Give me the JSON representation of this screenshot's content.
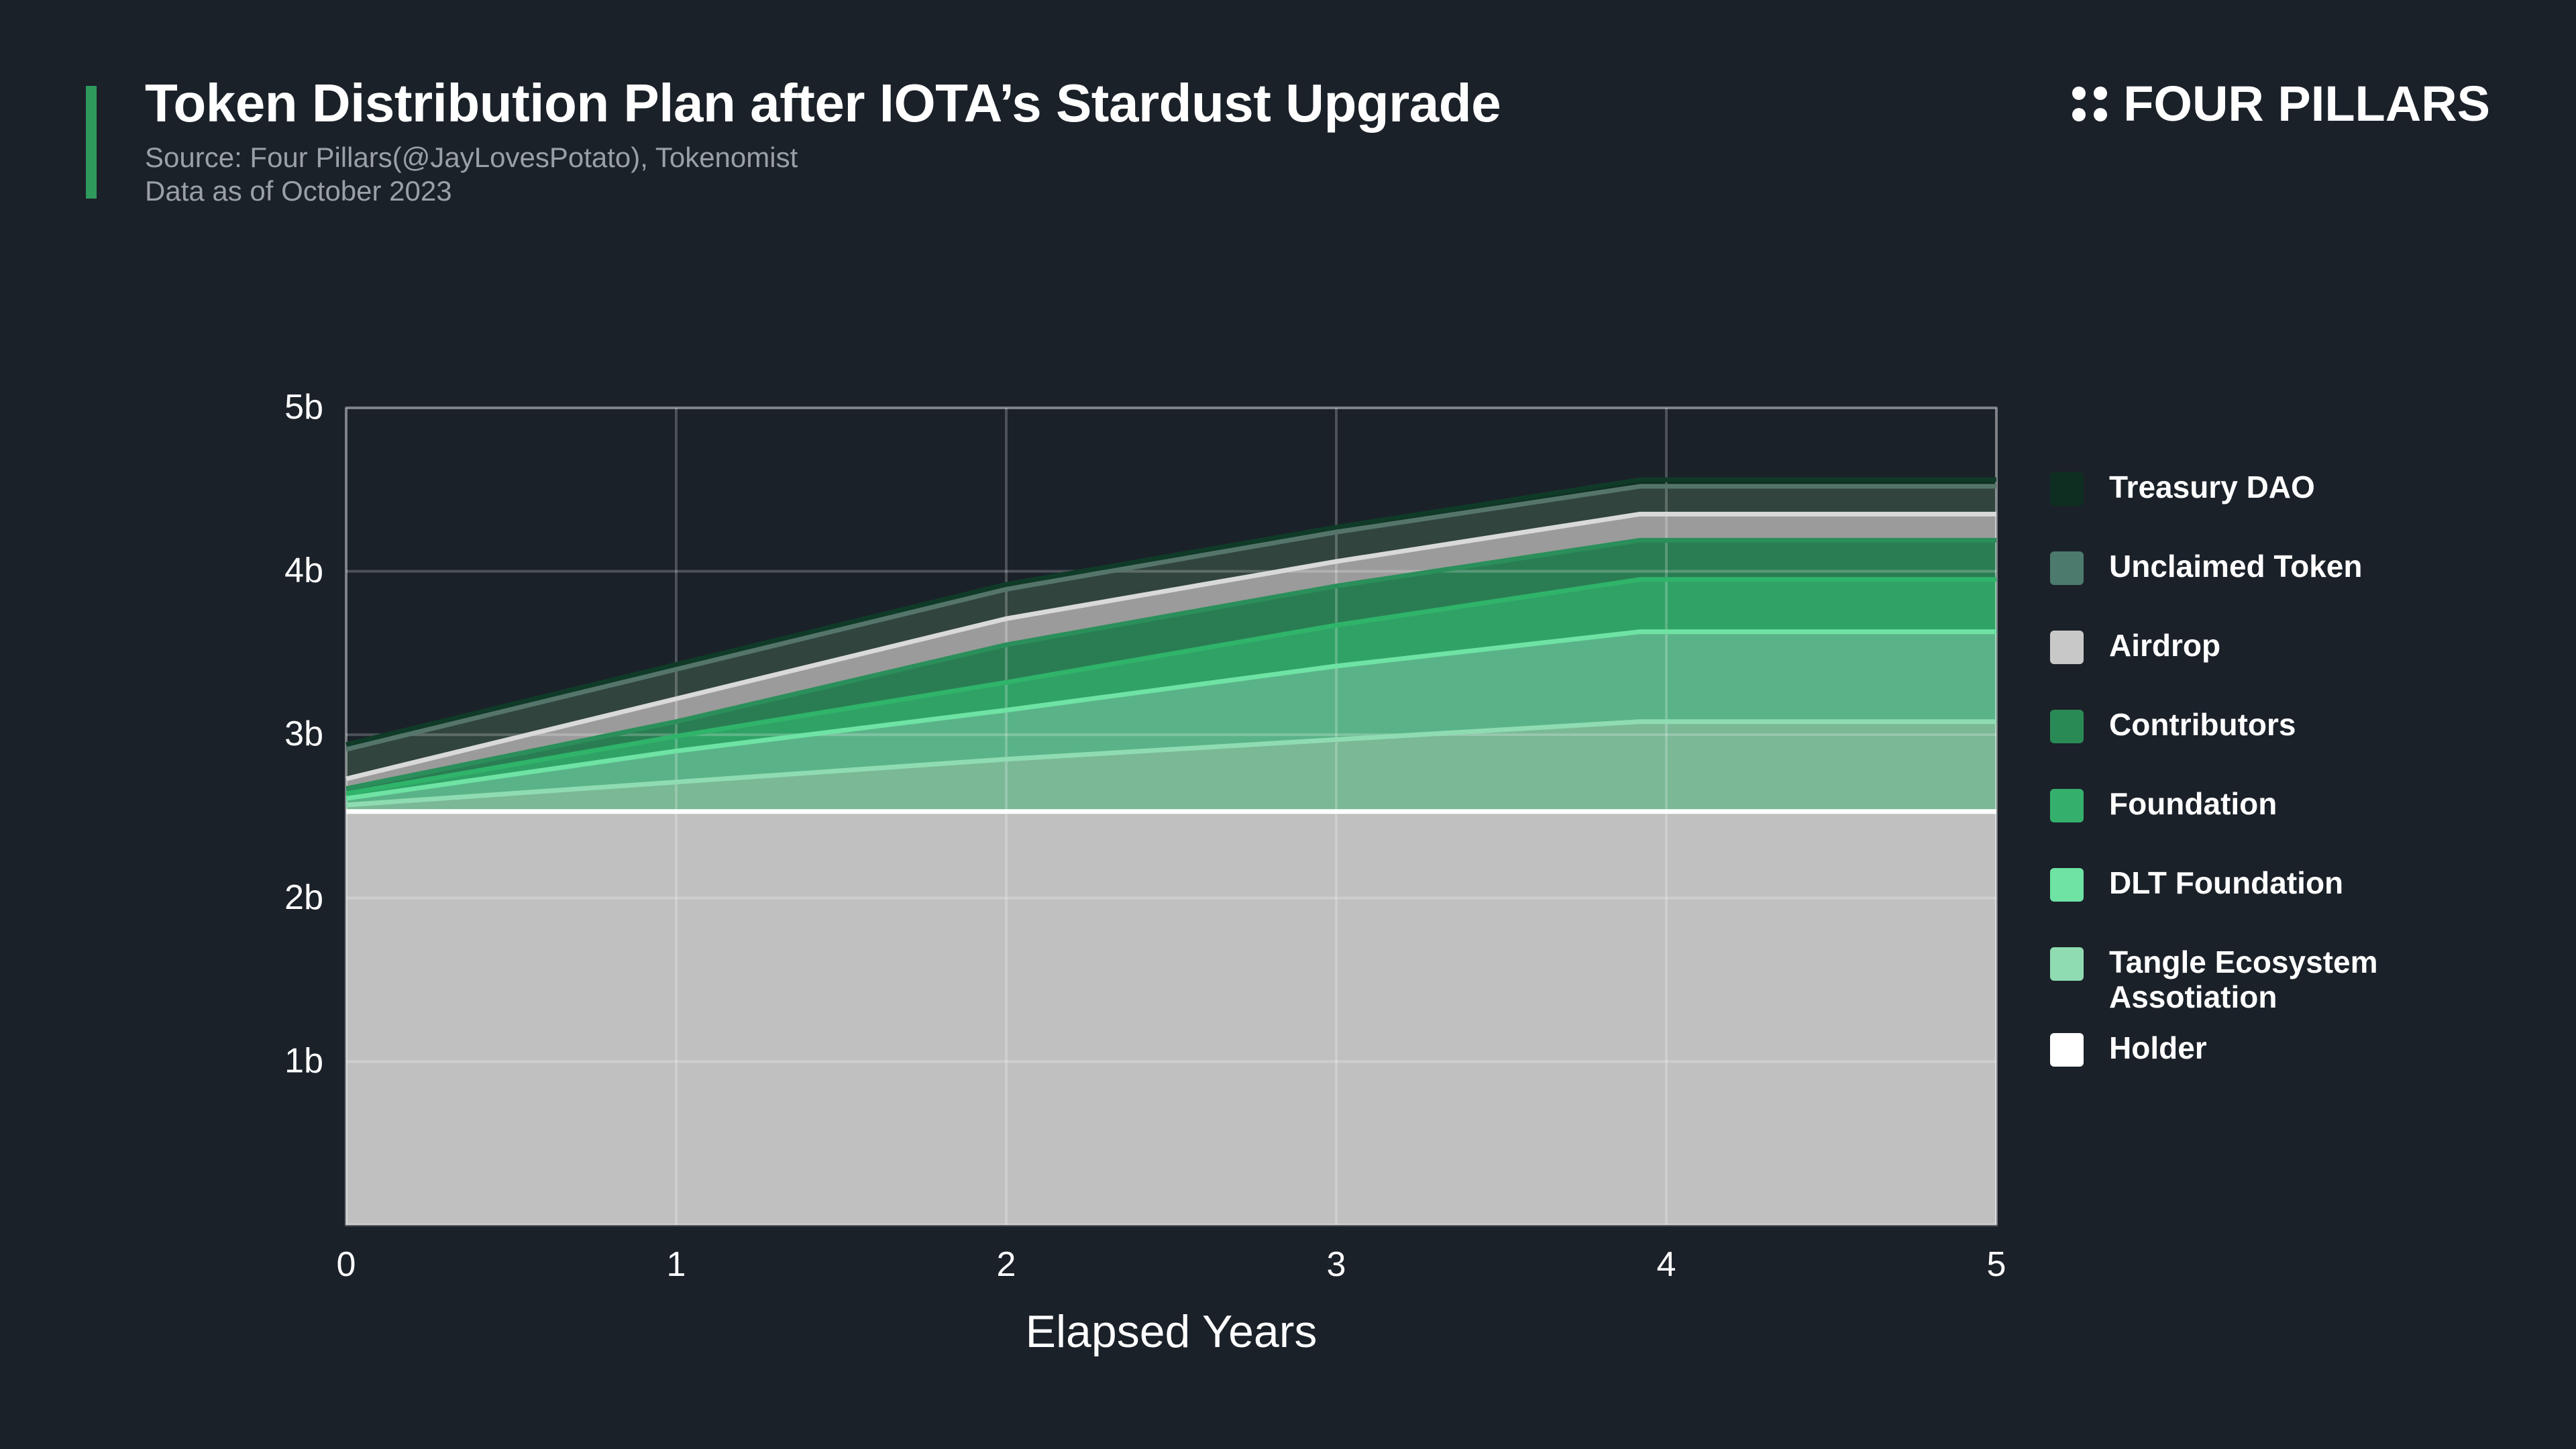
{
  "header": {
    "title": "Token Distribution Plan after IOTA’s Stardust Upgrade",
    "source": "Source: Four Pillars(@JayLovesPotato), Tokenomist",
    "date_note": "Data as of October 2023"
  },
  "brand": {
    "name": "FOUR PILLARS",
    "icon": "four-dots-logo-icon"
  },
  "colors": {
    "background": "#1b2129",
    "accent": "#2e9a5c"
  },
  "chart_data": {
    "type": "area",
    "stacked": true,
    "title": "Token Distribution Plan after IOTA’s Stardust Upgrade",
    "xlabel": "Elapsed Years",
    "ylabel": "",
    "x": [
      0,
      1,
      2,
      3,
      3.92,
      5
    ],
    "x_ticks": [
      "0",
      "1",
      "2",
      "3",
      "4",
      "5"
    ],
    "xlim": [
      0,
      5
    ],
    "ylim": [
      0,
      5
    ],
    "y_ticks": [
      {
        "value": 1,
        "label": "1b"
      },
      {
        "value": 2,
        "label": "2b"
      },
      {
        "value": 3,
        "label": "3b"
      },
      {
        "value": 4,
        "label": "4b"
      },
      {
        "value": 5,
        "label": "5b"
      }
    ],
    "unit": "b",
    "grid": true,
    "legend_position": "right",
    "series": [
      {
        "name": "Holder",
        "color": "#c0c0c0",
        "line": "#ffffff",
        "values": [
          2.53,
          2.53,
          2.53,
          2.53,
          2.53,
          2.53
        ]
      },
      {
        "name": "Tangle Ecosystem Assotiation",
        "color": "#7ab896",
        "line": "#8fdcb2",
        "values": [
          0.04,
          0.18,
          0.32,
          0.44,
          0.55,
          0.55
        ]
      },
      {
        "name": "DLT Foundation",
        "color": "#5ab388",
        "line": "#6ee3a4",
        "values": [
          0.04,
          0.19,
          0.3,
          0.45,
          0.55,
          0.55
        ]
      },
      {
        "name": "Foundation",
        "color": "#30a266",
        "line": "#2fb46a",
        "values": [
          0.03,
          0.09,
          0.17,
          0.25,
          0.32,
          0.32
        ]
      },
      {
        "name": "Contributors",
        "color": "#2a7d53",
        "line": "#2a8f5a",
        "values": [
          0.03,
          0.09,
          0.23,
          0.24,
          0.24,
          0.24
        ]
      },
      {
        "name": "Airdrop",
        "color": "#9b9b9b",
        "line": "#d9d9d9",
        "values": [
          0.06,
          0.14,
          0.16,
          0.15,
          0.16,
          0.16
        ]
      },
      {
        "name": "Unclaimed Token",
        "color": "#31443d",
        "line": "#55756b",
        "values": [
          0.18,
          0.18,
          0.18,
          0.18,
          0.17,
          0.17
        ]
      },
      {
        "name": "Treasury DAO",
        "color": "#0e2e21",
        "line": "#0f3a28",
        "values": [
          0.03,
          0.03,
          0.03,
          0.03,
          0.04,
          0.04
        ]
      }
    ]
  },
  "legend": {
    "items": [
      {
        "label": "Treasury DAO",
        "color": "#0e2e21"
      },
      {
        "label": "Unclaimed Token",
        "color": "#4c7a6d"
      },
      {
        "label": "Airdrop",
        "color": "#c8c8c8"
      },
      {
        "label": "Contributors",
        "color": "#2a8a56"
      },
      {
        "label": "Foundation",
        "color": "#35b06c"
      },
      {
        "label": "DLT Foundation",
        "color": "#6ee3a4"
      },
      {
        "label": "Tangle Ecosystem Assotiation",
        "color": "#8fdcb2"
      },
      {
        "label": "Holder",
        "color": "#ffffff"
      }
    ]
  }
}
